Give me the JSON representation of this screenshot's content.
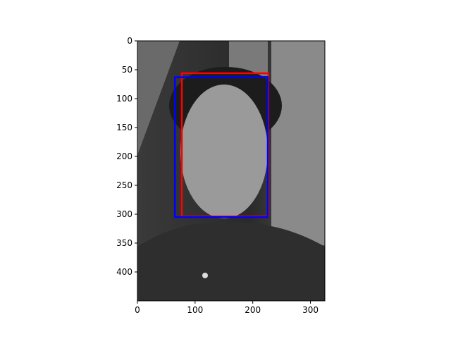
{
  "chart_data": {
    "type": "image",
    "xlim": [
      0,
      325
    ],
    "ylim": [
      450,
      0
    ],
    "xticks": [
      0,
      100,
      200,
      300
    ],
    "yticks": [
      0,
      50,
      100,
      150,
      200,
      250,
      300,
      350,
      400
    ],
    "series": [
      {
        "color": "#ff0000",
        "x": [
          77,
          227
        ],
        "y": [
          56,
          304
        ]
      },
      {
        "color": "#0000ff",
        "x": [
          65,
          226
        ],
        "y": [
          63,
          305
        ]
      }
    ]
  }
}
